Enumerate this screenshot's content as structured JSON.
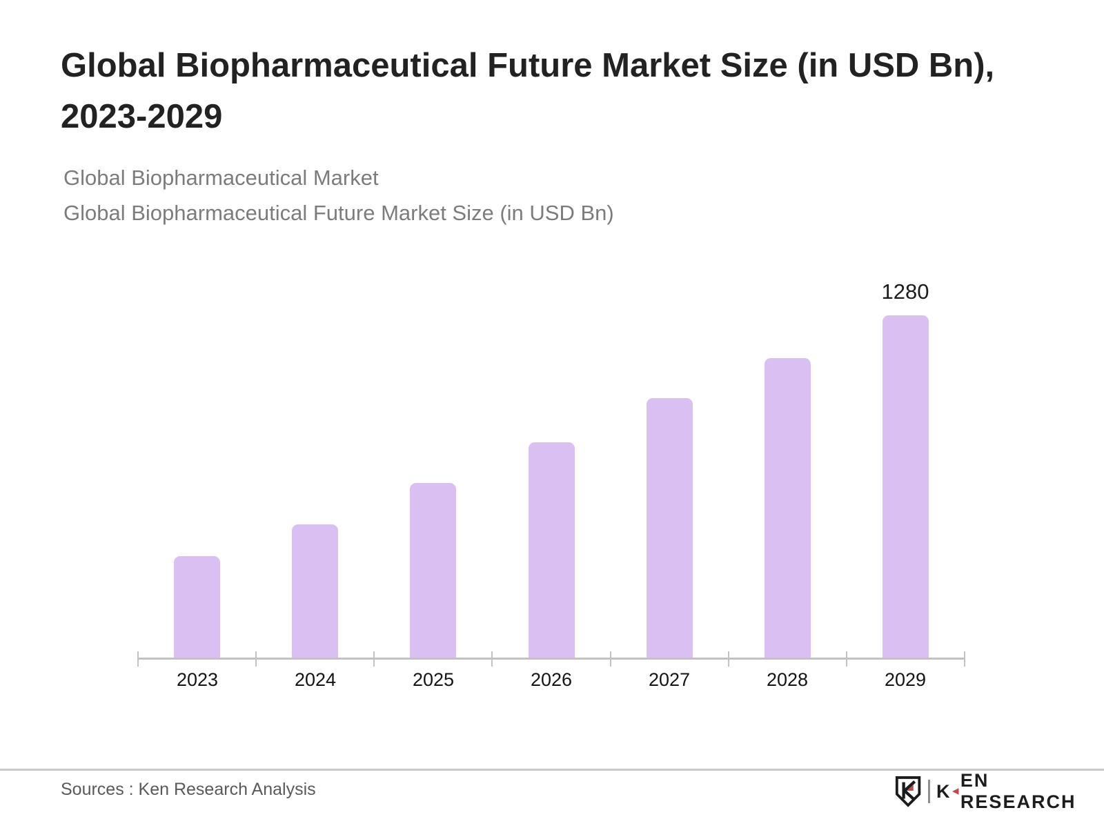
{
  "header": {
    "title_line1": "Global Biopharmaceutical Future Market Size (in USD Bn),",
    "title_line2": "2023-2029",
    "subtitle_line1": "Global Biopharmaceutical Market",
    "subtitle_line2": "Global Biopharmaceutical Future Market Size (in USD Bn)"
  },
  "chart_data": {
    "type": "bar",
    "title": "Global Biopharmaceutical Future Market Size (in USD Bn), 2023-2029",
    "categories": [
      "2023",
      "2024",
      "2025",
      "2026",
      "2027",
      "2028",
      "2029"
    ],
    "values": [
      380,
      500,
      655,
      805,
      970,
      1120,
      1280
    ],
    "data_labels": [
      "",
      "",
      "",
      "",
      "",
      "",
      "1280"
    ],
    "xlabel": "",
    "ylabel": "",
    "ylim": [
      0,
      1280
    ],
    "grid": false,
    "legend": "none",
    "bar_color": "#d9bff2",
    "axis_color": "#c2c2c2",
    "tick_label_color": "#141414",
    "value_label_color": "#1c1c1c"
  },
  "footer": {
    "source": "Sources : Ken Research Analysis",
    "brand": {
      "initial": "K",
      "rest": "EN RESEARCH"
    }
  },
  "colors": {
    "brand_red": "#bf4b4b",
    "logo_ink": "#1d1d1d"
  }
}
